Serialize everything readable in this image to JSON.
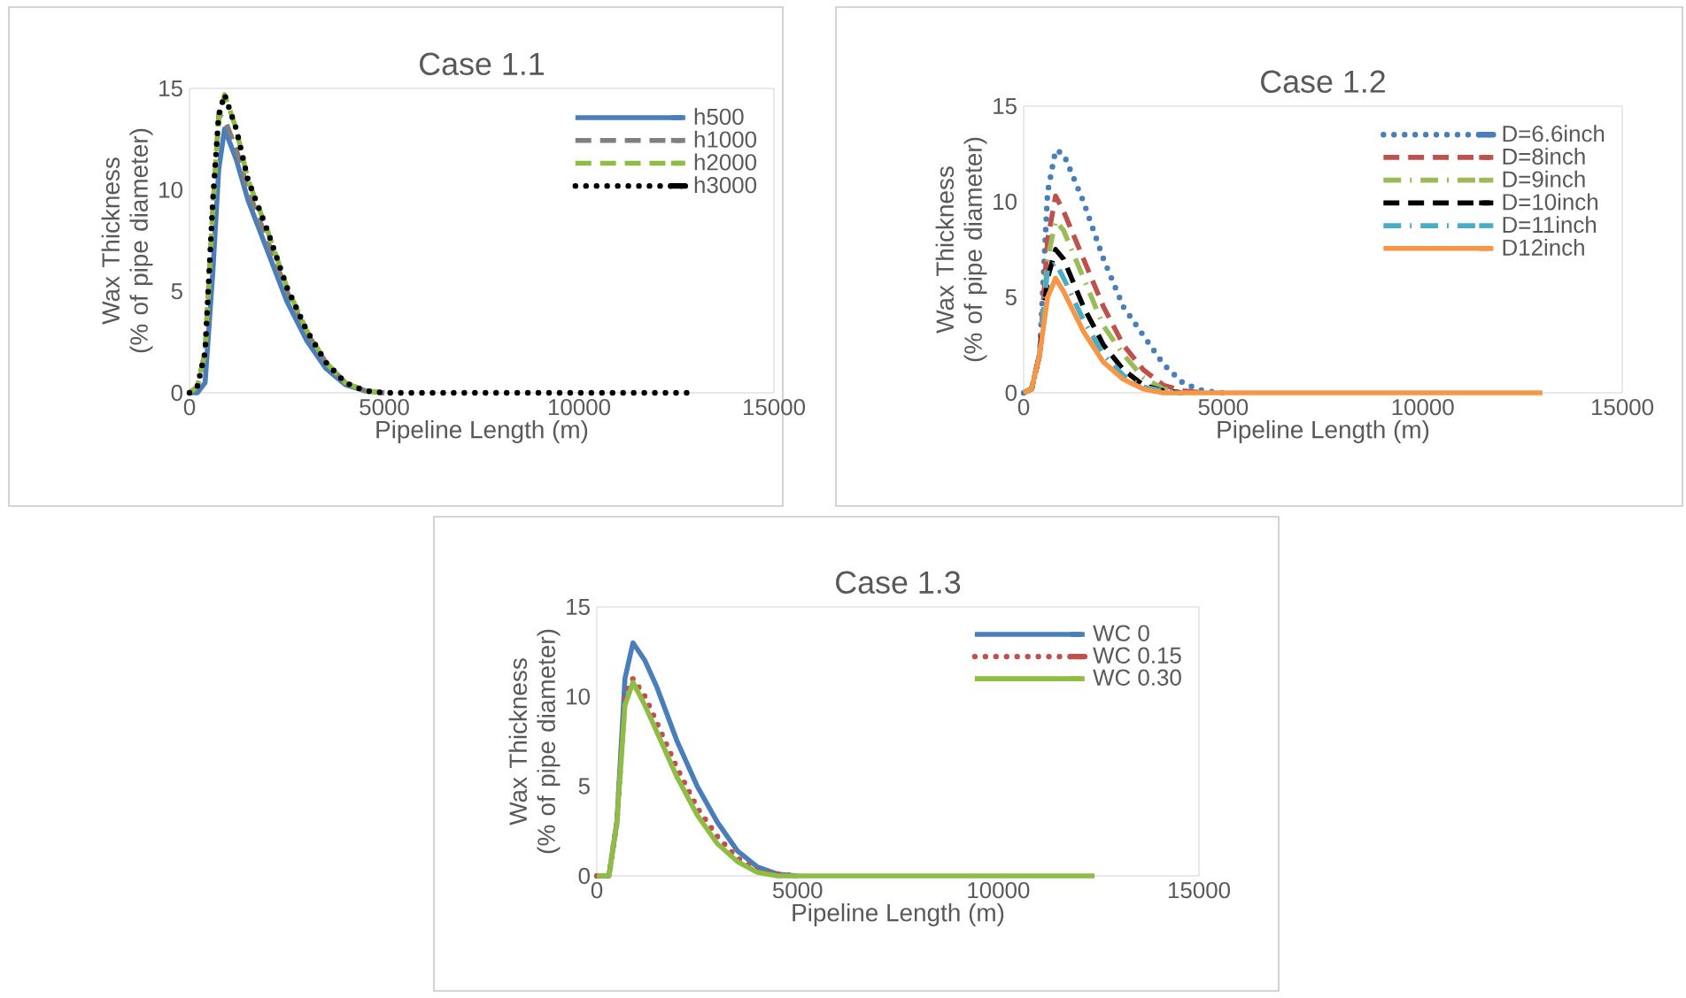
{
  "chart_data": [
    {
      "type": "line",
      "title": "Case 1.1",
      "xlabel": "Pipeline Length (m)",
      "ylabel": "Wax Thickness (% of pipe diameter)",
      "xlim": [
        0,
        15000
      ],
      "xticks": [
        0,
        5000,
        10000,
        {
          "value": 15000,
          "label": "15000"
        }
      ],
      "ylim": [
        0,
        15
      ],
      "yticks": [
        0,
        5,
        10,
        15
      ],
      "legend": "top right",
      "x": [
        0,
        200,
        400,
        600,
        750,
        900,
        1200,
        1500,
        2000,
        2500,
        3000,
        3500,
        4000,
        4500,
        5000,
        7000,
        10000,
        13000
      ],
      "series": [
        {
          "name": "h500",
          "color": "#4a7ebb",
          "line_style": "solid",
          "values": [
            0,
            0,
            0.5,
            6,
            11,
            13,
            11.5,
            9.5,
            7,
            4.5,
            2.6,
            1.2,
            0.4,
            0.1,
            0,
            null,
            null,
            null
          ]
        },
        {
          "name": "h1000",
          "color": "#7f7f7f",
          "line_style": "dashed",
          "values": [
            0,
            0.3,
            2,
            9,
            13.7,
            13.5,
            12,
            10,
            7.5,
            5,
            3,
            1.5,
            0.5,
            0.1,
            0,
            null,
            null,
            null
          ]
        },
        {
          "name": "h2000",
          "color": "#8fbc44",
          "line_style": "dashed",
          "values": [
            0,
            0.3,
            2,
            9,
            13.5,
            14.7,
            13,
            10.5,
            8,
            5.2,
            3.1,
            1.5,
            0.5,
            0.1,
            0,
            null,
            null,
            null
          ]
        },
        {
          "name": "h3000",
          "color": "#000000",
          "line_style": "dotted",
          "values": [
            0,
            0.3,
            2,
            9.5,
            13.7,
            14.7,
            13,
            10.5,
            8,
            5.2,
            3.1,
            1.5,
            0.5,
            0.1,
            0,
            0,
            0,
            0
          ]
        }
      ]
    },
    {
      "type": "line",
      "title": "Case 1.2",
      "xlabel": "Pipeline Length (m)",
      "ylabel": "Wax Thickness (% of pipe diameter)",
      "xlim": [
        0,
        15000
      ],
      "xticks": [
        0,
        5000,
        10000,
        15000
      ],
      "ylim": [
        0,
        15
      ],
      "yticks": [
        0,
        5,
        10,
        15
      ],
      "legend": "top right",
      "x": [
        0,
        200,
        400,
        600,
        800,
        1000,
        1500,
        2000,
        2500,
        3000,
        3500,
        4000,
        4500,
        5000,
        7000,
        10000,
        13000
      ],
      "series": [
        {
          "name": "D=6.6inch",
          "color": "#4a7ebb",
          "line_style": "dotted",
          "values": [
            0,
            0.2,
            2,
            10.5,
            12.7,
            12.5,
            10,
            7,
            4.5,
            3,
            1.5,
            0.5,
            0.1,
            0,
            null,
            null,
            null
          ]
        },
        {
          "name": "D=8inch",
          "color": "#c0504d",
          "line_style": "dashed",
          "values": [
            0,
            0.2,
            2,
            8,
            10.3,
            9.5,
            7,
            4.5,
            2.5,
            1.2,
            0.4,
            0.1,
            0,
            null,
            null,
            null,
            null
          ]
        },
        {
          "name": "D=9inch",
          "color": "#9bbb59",
          "line_style": "dashdot",
          "values": [
            0,
            0.2,
            2,
            7,
            9,
            8.5,
            6,
            3.5,
            2,
            0.8,
            0.2,
            0,
            null,
            null,
            null,
            null,
            null
          ]
        },
        {
          "name": "D=10inch",
          "color": "#000000",
          "line_style": "dashed",
          "values": [
            0,
            0.2,
            2,
            6,
            7.5,
            7,
            4.5,
            2.5,
            1.2,
            0.4,
            0.1,
            0,
            null,
            null,
            null,
            null,
            null
          ]
        },
        {
          "name": "D=11inch",
          "color": "#4bacc6",
          "line_style": "dashdot",
          "values": [
            0,
            0.2,
            2,
            6.5,
            6.8,
            6,
            3.8,
            2,
            0.9,
            0.3,
            0.1,
            0,
            null,
            null,
            null,
            null,
            null
          ]
        },
        {
          "name": "D12inch",
          "color": "#f79646",
          "line_style": "solid",
          "values": [
            0,
            0.2,
            2,
            5,
            6,
            5.3,
            3.2,
            1.6,
            0.7,
            0.2,
            0,
            0,
            0,
            0,
            0,
            0,
            0
          ]
        }
      ]
    },
    {
      "type": "line",
      "title": "Case 1.3",
      "xlabel": "Pipeline Length (m)",
      "ylabel": "Wax Thickness (% of pipe diameter)",
      "xlim": [
        0,
        15000
      ],
      "xticks": [
        0,
        5000,
        10000,
        15000
      ],
      "ylim": [
        0,
        15
      ],
      "yticks": [
        0,
        5,
        10,
        15
      ],
      "legend": "top right",
      "x": [
        0,
        300,
        500,
        700,
        900,
        1200,
        1500,
        2000,
        2500,
        3000,
        3500,
        4000,
        4500,
        5000,
        7000,
        10000,
        12400
      ],
      "series": [
        {
          "name": "WC 0",
          "color": "#4a7ebb",
          "line_style": "solid",
          "values": [
            0,
            0,
            3,
            11,
            13,
            12,
            10.5,
            7.5,
            5,
            3,
            1.4,
            0.5,
            0.1,
            0,
            null,
            null,
            null
          ]
        },
        {
          "name": "WC 0.15",
          "color": "#c0504d",
          "line_style": "dotted",
          "values": [
            0,
            0,
            3,
            10,
            11,
            10,
            8.5,
            6,
            3.8,
            2.2,
            1,
            0.3,
            0.1,
            0,
            null,
            null,
            null
          ]
        },
        {
          "name": "WC 0.30",
          "color": "#8fbc44",
          "line_style": "solid",
          "values": [
            0,
            0,
            3,
            9.5,
            10.8,
            9.5,
            8,
            5.5,
            3.4,
            1.8,
            0.8,
            0.2,
            0,
            0,
            0,
            0,
            0
          ]
        }
      ]
    }
  ]
}
